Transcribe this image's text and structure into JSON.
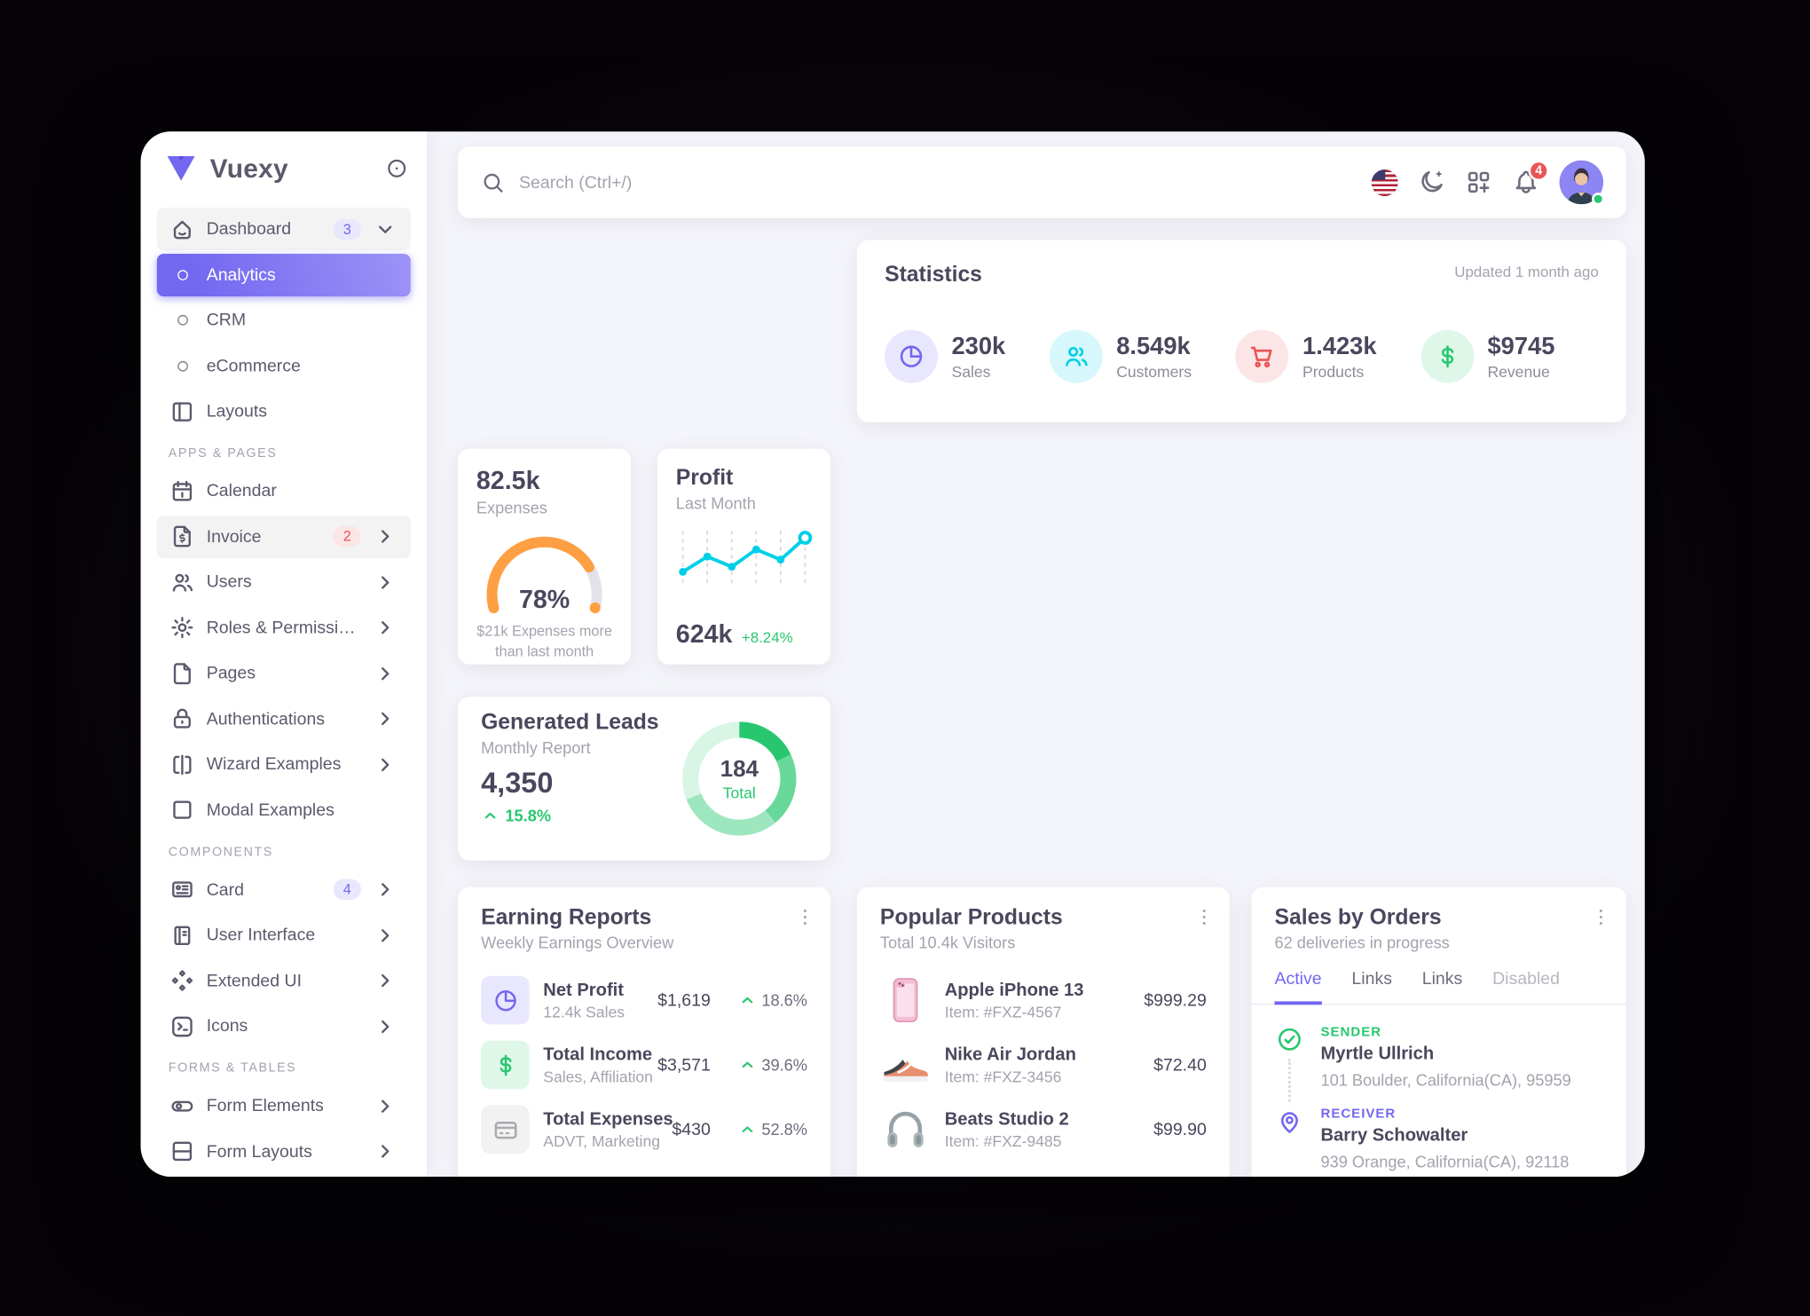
{
  "colors": {
    "primary": "#7367f0",
    "success": "#28c76f",
    "danger": "#ea5455",
    "warning": "#ff9f43",
    "info": "#00cfe8"
  },
  "brand": {
    "name": "Vuexy"
  },
  "sidebar": {
    "sections": [
      {
        "items": [
          {
            "label": "Dashboard",
            "icon": "home-icon",
            "badge": "3",
            "badge_style": "primary",
            "chevron": "down",
            "row_style": "group-open"
          },
          {
            "label": "Analytics",
            "bullet": true,
            "row_style": "active"
          },
          {
            "label": "CRM",
            "bullet": true
          },
          {
            "label": "eCommerce",
            "bullet": true
          },
          {
            "label": "Layouts",
            "icon": "layout-sidebar-icon"
          }
        ]
      },
      {
        "header": "APPS & PAGES",
        "items": [
          {
            "label": "Calendar",
            "icon": "calendar-icon"
          },
          {
            "label": "Invoice",
            "icon": "invoice-icon",
            "badge": "2",
            "badge_style": "danger",
            "chevron": "right",
            "row_style": "hover"
          },
          {
            "label": "Users",
            "icon": "users-icon",
            "chevron": "right"
          },
          {
            "label": "Roles & Permissions",
            "icon": "gear-icon",
            "chevron": "right"
          },
          {
            "label": "Pages",
            "icon": "file-icon",
            "chevron": "right"
          },
          {
            "label": "Authentications",
            "icon": "lock-icon",
            "chevron": "right"
          },
          {
            "label": "Wizard Examples",
            "icon": "wizard-icon",
            "chevron": "right"
          },
          {
            "label": "Modal Examples",
            "icon": "square-icon"
          }
        ]
      },
      {
        "header": "COMPONENTS",
        "items": [
          {
            "label": "Card",
            "icon": "id-card-icon",
            "badge": "4",
            "badge_style": "primary",
            "chevron": "right"
          },
          {
            "label": "User Interface",
            "icon": "notebook-icon",
            "chevron": "right"
          },
          {
            "label": "Extended UI",
            "icon": "diamonds-icon",
            "chevron": "right"
          },
          {
            "label": "Icons",
            "icon": "terminal-icon",
            "chevron": "right"
          }
        ]
      },
      {
        "header": "FORMS & TABLES",
        "items": [
          {
            "label": "Form Elements",
            "icon": "toggle-icon",
            "chevron": "right"
          },
          {
            "label": "Form Layouts",
            "icon": "layout-rows-icon",
            "chevron": "right"
          }
        ]
      }
    ]
  },
  "navbar": {
    "search_placeholder": "Search (Ctrl+/)",
    "notification_count": "4",
    "action_icons": [
      "us-flag-icon",
      "moon-icon",
      "apps-grid-icon",
      "bell-icon",
      "avatar"
    ]
  },
  "statistics": {
    "title": "Statistics",
    "updated": "Updated 1 month ago",
    "items": [
      {
        "value": "230k",
        "label": "Sales",
        "icon": "pie-chart-icon",
        "color": "#7367f0",
        "bg": "#e9e7fd"
      },
      {
        "value": "8.549k",
        "label": "Customers",
        "icon": "users-icon",
        "color": "#00cfe8",
        "bg": "#d6f7fb"
      },
      {
        "value": "1.423k",
        "label": "Products",
        "icon": "cart-icon",
        "color": "#ea5455",
        "bg": "#fce5e6"
      },
      {
        "value": "$9745",
        "label": "Revenue",
        "icon": "dollar-icon",
        "color": "#28c76f",
        "bg": "#dff7e9"
      }
    ]
  },
  "expenses": {
    "value": "82.5k",
    "label": "Expenses",
    "gauge_label": "78%",
    "caption": "$21k Expenses more than last month"
  },
  "profit": {
    "title": "Profit",
    "subtitle": "Last Month",
    "total": "624k",
    "change": "+8.24%"
  },
  "leads": {
    "title": "Generated Leads",
    "subtitle": "Monthly Report",
    "total": "4,350",
    "change": "15.8%",
    "donut_value": "184",
    "donut_label": "Total"
  },
  "earning_reports": {
    "title": "Earning Reports",
    "subtitle": "Weekly Earnings Overview",
    "rows": [
      {
        "title": "Net Profit",
        "subtitle": "12.4k Sales",
        "value": "$1,619",
        "pct": "18.6%",
        "icon": "pie-chart-icon",
        "color": "#7367f0",
        "bg": "#e9e7fd"
      },
      {
        "title": "Total Income",
        "subtitle": "Sales, Affiliation",
        "value": "$3,571",
        "pct": "39.6%",
        "icon": "dollar-icon",
        "color": "#28c76f",
        "bg": "#dff7e9"
      },
      {
        "title": "Total Expenses",
        "subtitle": "ADVT, Marketing",
        "value": "$430",
        "pct": "52.8%",
        "icon": "credit-card-icon",
        "color": "#a8aaae",
        "bg": "#f2f2f3"
      }
    ]
  },
  "popular_products": {
    "title": "Popular Products",
    "subtitle": "Total 10.4k Visitors",
    "rows": [
      {
        "title": "Apple iPhone 13",
        "subtitle": "Item: #FXZ-4567",
        "price": "$999.29",
        "image": "iphone-image"
      },
      {
        "title": "Nike Air Jordan",
        "subtitle": "Item: #FXZ-3456",
        "price": "$72.40",
        "image": "sneaker-image"
      },
      {
        "title": "Beats Studio 2",
        "subtitle": "Item: #FXZ-9485",
        "price": "$99.90",
        "image": "headphones-image"
      }
    ]
  },
  "sales_by_orders": {
    "title": "Sales by Orders",
    "subtitle": "62 deliveries in progress",
    "tabs": [
      {
        "label": "Active",
        "state": "active"
      },
      {
        "label": "Links"
      },
      {
        "label": "Links"
      },
      {
        "label": "Disabled",
        "state": "disabled"
      }
    ],
    "timeline": [
      {
        "role": "SENDER",
        "name": "Myrtle Ullrich",
        "address": "101 Boulder, California(CA), 95959",
        "icon": "check-circle-icon",
        "color": "#28c76f"
      },
      {
        "role": "RECEIVER",
        "name": "Barry Schowalter",
        "address": "939 Orange, California(CA), 92118",
        "icon": "map-pin-icon",
        "color": "#7367f0"
      }
    ]
  },
  "chart_data": [
    {
      "type": "line",
      "title": "Profit",
      "subtitle": "Last Month",
      "x": [
        1,
        2,
        3,
        4,
        5,
        6
      ],
      "values": [
        28,
        58,
        38,
        72,
        52,
        95
      ],
      "total": "624k",
      "change": "+8.24%",
      "color": "#00cfe8",
      "grid": "dashed-vertical",
      "ylim": [
        0,
        100
      ],
      "legend": "off"
    },
    {
      "type": "gauge",
      "title": "Expenses",
      "value": 78,
      "label": "78%",
      "max": 100,
      "color": "#ff9f43",
      "track_color": "#e4e2e9",
      "total": "82.5k",
      "caption": "$21k Expenses more than last month"
    },
    {
      "type": "donut",
      "title": "Generated Leads",
      "center_value": "184",
      "center_label": "Total",
      "color": "#28c76f",
      "segments": [
        {
          "value": 18,
          "opacity": 1
        },
        {
          "value": 21,
          "opacity": 0.7
        },
        {
          "value": 30,
          "opacity": 0.45
        },
        {
          "value": 31,
          "opacity": 0.18
        }
      ],
      "total": "4,350",
      "change": "15.8%"
    }
  ]
}
